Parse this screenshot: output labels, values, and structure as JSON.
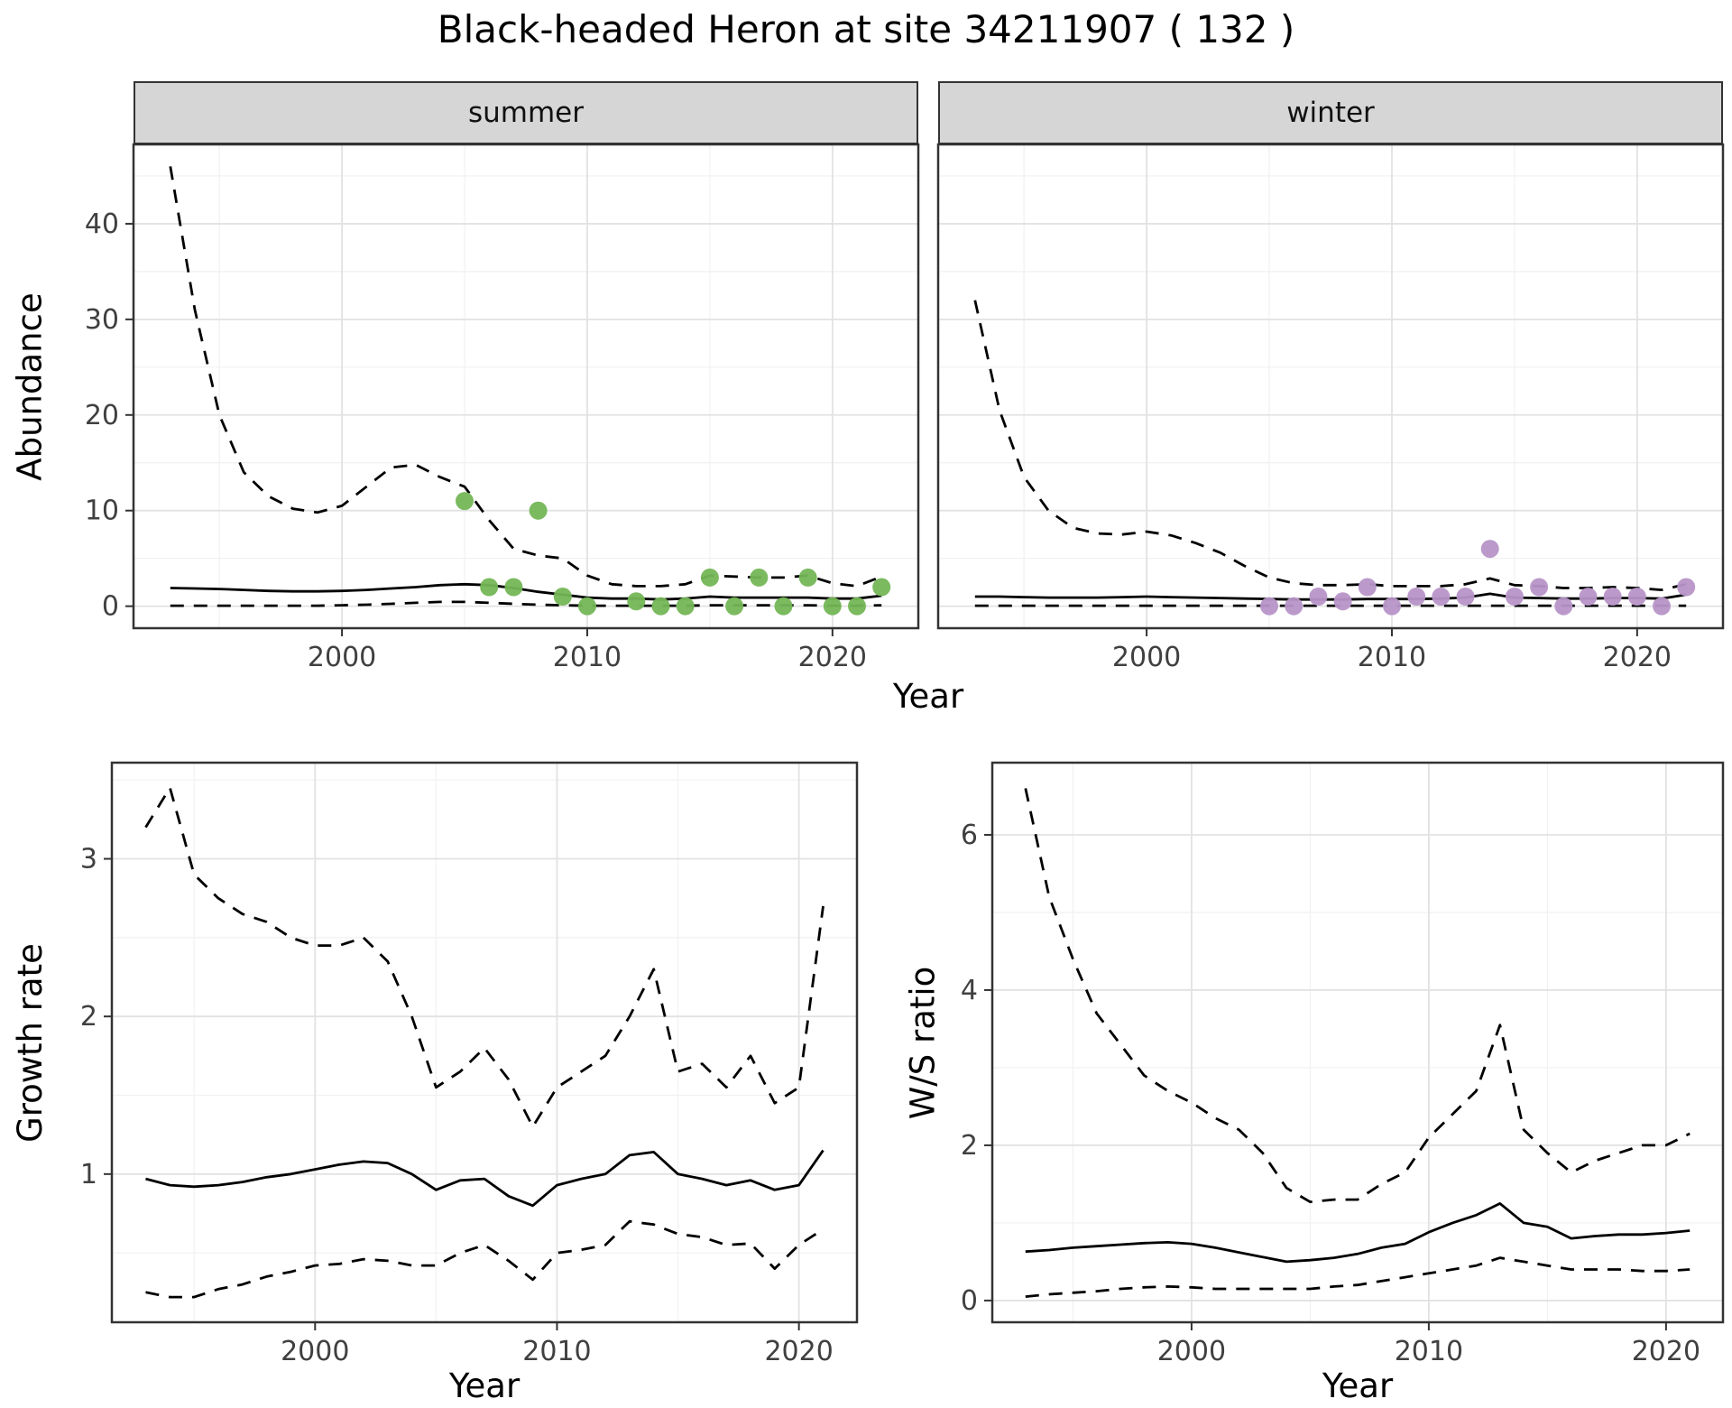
{
  "title": "Black-headed Heron at site 34211907 ( 132 )",
  "facets": [
    "summer",
    "winter"
  ],
  "axes": {
    "year_label": "Year",
    "abundance_label": "Abundance",
    "growth_label": "Growth rate",
    "ws_label": "W/S ratio"
  },
  "colors": {
    "summer_points": "#74b656",
    "winter_points": "#b795c8",
    "line": "#000000",
    "strip_bg": "#d6d6d6",
    "grid_major": "#e2e2e2",
    "grid_minor": "#f1f1f1",
    "panel_border": "#333333",
    "tick_text": "#404040"
  },
  "chart_data": [
    {
      "id": "abundance_summer",
      "type": "line",
      "title": "summer",
      "xlabel": "Year",
      "ylabel": "Abundance",
      "legend": "none",
      "grid": true,
      "xlim": [
        1991.5,
        2023.5
      ],
      "ylim": [
        -2.3,
        48.3
      ],
      "xticks": [
        2000,
        2010,
        2020
      ],
      "xminor": [
        1995,
        2005,
        2015
      ],
      "yticks": [
        0,
        10,
        20,
        30,
        40
      ],
      "yminor": [
        5,
        15,
        25,
        35,
        45
      ],
      "show_y_labels": true,
      "x": [
        1993,
        1994,
        1995,
        1996,
        1997,
        1998,
        1999,
        2000,
        2001,
        2002,
        2003,
        2004,
        2005,
        2006,
        2007,
        2008,
        2009,
        2010,
        2011,
        2012,
        2013,
        2014,
        2015,
        2016,
        2017,
        2018,
        2019,
        2020,
        2021,
        2022
      ],
      "series": [
        {
          "name": "upper_ci",
          "style": "dashed",
          "color": "#000000",
          "values": [
            46,
            31,
            20,
            14,
            11.5,
            10.2,
            9.8,
            10.5,
            12.5,
            14.5,
            14.8,
            13.5,
            12.5,
            9,
            6,
            5.3,
            5,
            3.2,
            2.3,
            2.1,
            2.1,
            2.3,
            3.2,
            3.1,
            3,
            3,
            3.2,
            2.4,
            2.1,
            3.1
          ]
        },
        {
          "name": "estimate",
          "style": "solid",
          "color": "#000000",
          "values": [
            1.9,
            1.85,
            1.8,
            1.7,
            1.6,
            1.55,
            1.55,
            1.6,
            1.7,
            1.85,
            2.0,
            2.2,
            2.3,
            2.2,
            1.9,
            1.5,
            1.2,
            0.9,
            0.8,
            0.8,
            0.7,
            0.8,
            1.0,
            0.9,
            0.9,
            0.9,
            0.9,
            0.8,
            0.8,
            1.1
          ]
        },
        {
          "name": "lower_ci",
          "style": "dashed",
          "color": "#000000",
          "values": [
            0.05,
            0.05,
            0.05,
            0.05,
            0.05,
            0.05,
            0.05,
            0.1,
            0.15,
            0.25,
            0.35,
            0.45,
            0.45,
            0.35,
            0.25,
            0.15,
            0.1,
            0.05,
            0.05,
            0.05,
            0.05,
            0.05,
            0.1,
            0.1,
            0.1,
            0.1,
            0.1,
            0.05,
            0.05,
            0.1
          ]
        }
      ],
      "points": {
        "name": "observed_counts_summer",
        "color": "#74b656",
        "x": [
          2005,
          2006,
          2007,
          2008,
          2009,
          2010,
          2012,
          2013,
          2014,
          2015,
          2016,
          2017,
          2018,
          2019,
          2020,
          2021,
          2022
        ],
        "y": [
          11,
          2,
          2,
          10,
          1,
          0,
          0.5,
          0,
          0,
          3,
          0,
          3,
          0,
          3,
          0,
          0,
          2
        ]
      }
    },
    {
      "id": "abundance_winter",
      "type": "line",
      "title": "winter",
      "xlabel": "Year",
      "ylabel": "Abundance",
      "legend": "none",
      "grid": true,
      "xlim": [
        1991.5,
        2023.5
      ],
      "ylim": [
        -2.3,
        48.3
      ],
      "xticks": [
        2000,
        2010,
        2020
      ],
      "xminor": [
        1995,
        2005,
        2015
      ],
      "yticks": [
        0,
        10,
        20,
        30,
        40
      ],
      "yminor": [
        5,
        15,
        25,
        35,
        45
      ],
      "show_y_labels": false,
      "x": [
        1993,
        1994,
        1995,
        1996,
        1997,
        1998,
        1999,
        2000,
        2001,
        2002,
        2003,
        2004,
        2005,
        2006,
        2007,
        2008,
        2009,
        2010,
        2011,
        2012,
        2013,
        2014,
        2015,
        2016,
        2017,
        2018,
        2019,
        2020,
        2021,
        2022
      ],
      "series": [
        {
          "name": "upper_ci",
          "style": "dashed",
          "color": "#000000",
          "values": [
            32,
            20.5,
            13.5,
            10,
            8.2,
            7.6,
            7.5,
            7.8,
            7.4,
            6.6,
            5.6,
            4.2,
            3.0,
            2.4,
            2.2,
            2.2,
            2.3,
            2.1,
            2.1,
            2.1,
            2.3,
            2.9,
            2.2,
            2.1,
            1.9,
            1.9,
            2.0,
            1.9,
            1.7,
            2.3
          ]
        },
        {
          "name": "estimate",
          "style": "solid",
          "color": "#000000",
          "values": [
            1.0,
            1.0,
            0.95,
            0.9,
            0.9,
            0.9,
            0.95,
            1.0,
            0.95,
            0.9,
            0.85,
            0.8,
            0.75,
            0.7,
            0.7,
            0.7,
            0.75,
            0.75,
            0.75,
            0.8,
            0.9,
            1.3,
            0.9,
            0.85,
            0.8,
            0.8,
            0.85,
            0.85,
            0.8,
            1.2
          ]
        },
        {
          "name": "lower_ci",
          "style": "dashed",
          "color": "#000000",
          "values": [
            0.05,
            0.05,
            0.05,
            0.05,
            0.05,
            0.05,
            0.05,
            0.05,
            0.05,
            0.05,
            0.05,
            0.05,
            0.05,
            0.05,
            0.05,
            0.05,
            0.05,
            0.05,
            0.05,
            0.05,
            0.05,
            0.05,
            0.05,
            0.05,
            0.05,
            0.05,
            0.05,
            0.05,
            0.05,
            0.05
          ]
        }
      ],
      "points": {
        "name": "observed_counts_winter",
        "color": "#b795c8",
        "x": [
          2005,
          2006,
          2007,
          2008,
          2009,
          2010,
          2011,
          2012,
          2013,
          2014,
          2015,
          2016,
          2017,
          2018,
          2019,
          2020,
          2021,
          2022
        ],
        "y": [
          0,
          0,
          1,
          0.5,
          2,
          0,
          1,
          1,
          1,
          6,
          1,
          2,
          0,
          1,
          1,
          1,
          0,
          2
        ]
      }
    },
    {
      "id": "growth_rate",
      "type": "line",
      "title": "",
      "xlabel": "Year",
      "ylabel": "Growth rate",
      "legend": "none",
      "grid": true,
      "xlim": [
        1991.6,
        2022.4
      ],
      "ylim": [
        0.06,
        3.61
      ],
      "xticks": [
        2000,
        2010,
        2020
      ],
      "xminor": [
        1995,
        2005,
        2015
      ],
      "yticks": [
        1,
        2,
        3
      ],
      "yminor": [
        0.5,
        1.5,
        2.5,
        3.5
      ],
      "show_y_labels": true,
      "x": [
        1993,
        1994,
        1995,
        1996,
        1997,
        1998,
        1999,
        2000,
        2001,
        2002,
        2003,
        2004,
        2005,
        2006,
        2007,
        2008,
        2009,
        2010,
        2011,
        2012,
        2013,
        2014,
        2015,
        2016,
        2017,
        2018,
        2019,
        2020,
        2021
      ],
      "series": [
        {
          "name": "upper_ci",
          "style": "dashed",
          "color": "#000000",
          "values": [
            3.2,
            3.45,
            2.9,
            2.75,
            2.65,
            2.6,
            2.5,
            2.45,
            2.45,
            2.5,
            2.35,
            2.0,
            1.55,
            1.65,
            1.8,
            1.6,
            1.3,
            1.55,
            1.65,
            1.75,
            2.0,
            2.3,
            1.65,
            1.7,
            1.55,
            1.75,
            1.45,
            1.55,
            2.7
          ]
        },
        {
          "name": "estimate",
          "style": "solid",
          "color": "#000000",
          "values": [
            0.97,
            0.93,
            0.92,
            0.93,
            0.95,
            0.98,
            1.0,
            1.03,
            1.06,
            1.08,
            1.07,
            1.0,
            0.9,
            0.96,
            0.97,
            0.86,
            0.8,
            0.93,
            0.97,
            1.0,
            1.12,
            1.14,
            1.0,
            0.97,
            0.93,
            0.96,
            0.9,
            0.93,
            1.15
          ]
        },
        {
          "name": "lower_ci",
          "style": "dashed",
          "color": "#000000",
          "values": [
            0.25,
            0.22,
            0.22,
            0.27,
            0.3,
            0.35,
            0.38,
            0.42,
            0.43,
            0.46,
            0.45,
            0.42,
            0.42,
            0.5,
            0.55,
            0.45,
            0.33,
            0.5,
            0.52,
            0.55,
            0.7,
            0.68,
            0.62,
            0.6,
            0.55,
            0.56,
            0.4,
            0.55,
            0.65
          ]
        }
      ],
      "points": null
    },
    {
      "id": "ws_ratio",
      "type": "line",
      "title": "",
      "xlabel": "Year",
      "ylabel": "W/S ratio",
      "legend": "none",
      "grid": true,
      "xlim": [
        1991.6,
        2022.4
      ],
      "ylim": [
        -0.28,
        6.93
      ],
      "xticks": [
        2000,
        2010,
        2020
      ],
      "xminor": [
        1995,
        2005,
        2015
      ],
      "yticks": [
        0,
        2,
        4,
        6
      ],
      "yminor": [
        1,
        3,
        5
      ],
      "show_y_labels": true,
      "x": [
        1993,
        1994,
        1995,
        1996,
        1997,
        1998,
        1999,
        2000,
        2001,
        2002,
        2003,
        2004,
        2005,
        2006,
        2007,
        2008,
        2009,
        2010,
        2011,
        2012,
        2013,
        2014,
        2015,
        2016,
        2017,
        2018,
        2019,
        2020,
        2021
      ],
      "series": [
        {
          "name": "upper_ci",
          "style": "dashed",
          "color": "#000000",
          "values": [
            6.6,
            5.2,
            4.4,
            3.7,
            3.3,
            2.9,
            2.7,
            2.55,
            2.35,
            2.2,
            1.9,
            1.45,
            1.27,
            1.3,
            1.3,
            1.5,
            1.65,
            2.1,
            2.4,
            2.7,
            3.55,
            2.2,
            1.9,
            1.65,
            1.8,
            1.9,
            2.0,
            2.0,
            2.15
          ]
        },
        {
          "name": "estimate",
          "style": "solid",
          "color": "#000000",
          "values": [
            0.63,
            0.65,
            0.68,
            0.7,
            0.72,
            0.74,
            0.75,
            0.73,
            0.68,
            0.62,
            0.56,
            0.5,
            0.52,
            0.55,
            0.6,
            0.68,
            0.73,
            0.88,
            1.0,
            1.1,
            1.25,
            1.0,
            0.95,
            0.8,
            0.83,
            0.85,
            0.85,
            0.87,
            0.9
          ]
        },
        {
          "name": "lower_ci",
          "style": "dashed",
          "color": "#000000",
          "values": [
            0.05,
            0.08,
            0.1,
            0.12,
            0.15,
            0.17,
            0.18,
            0.17,
            0.15,
            0.15,
            0.15,
            0.15,
            0.15,
            0.18,
            0.2,
            0.25,
            0.3,
            0.35,
            0.4,
            0.45,
            0.55,
            0.5,
            0.45,
            0.4,
            0.4,
            0.4,
            0.38,
            0.38,
            0.4
          ]
        }
      ],
      "points": null
    }
  ]
}
